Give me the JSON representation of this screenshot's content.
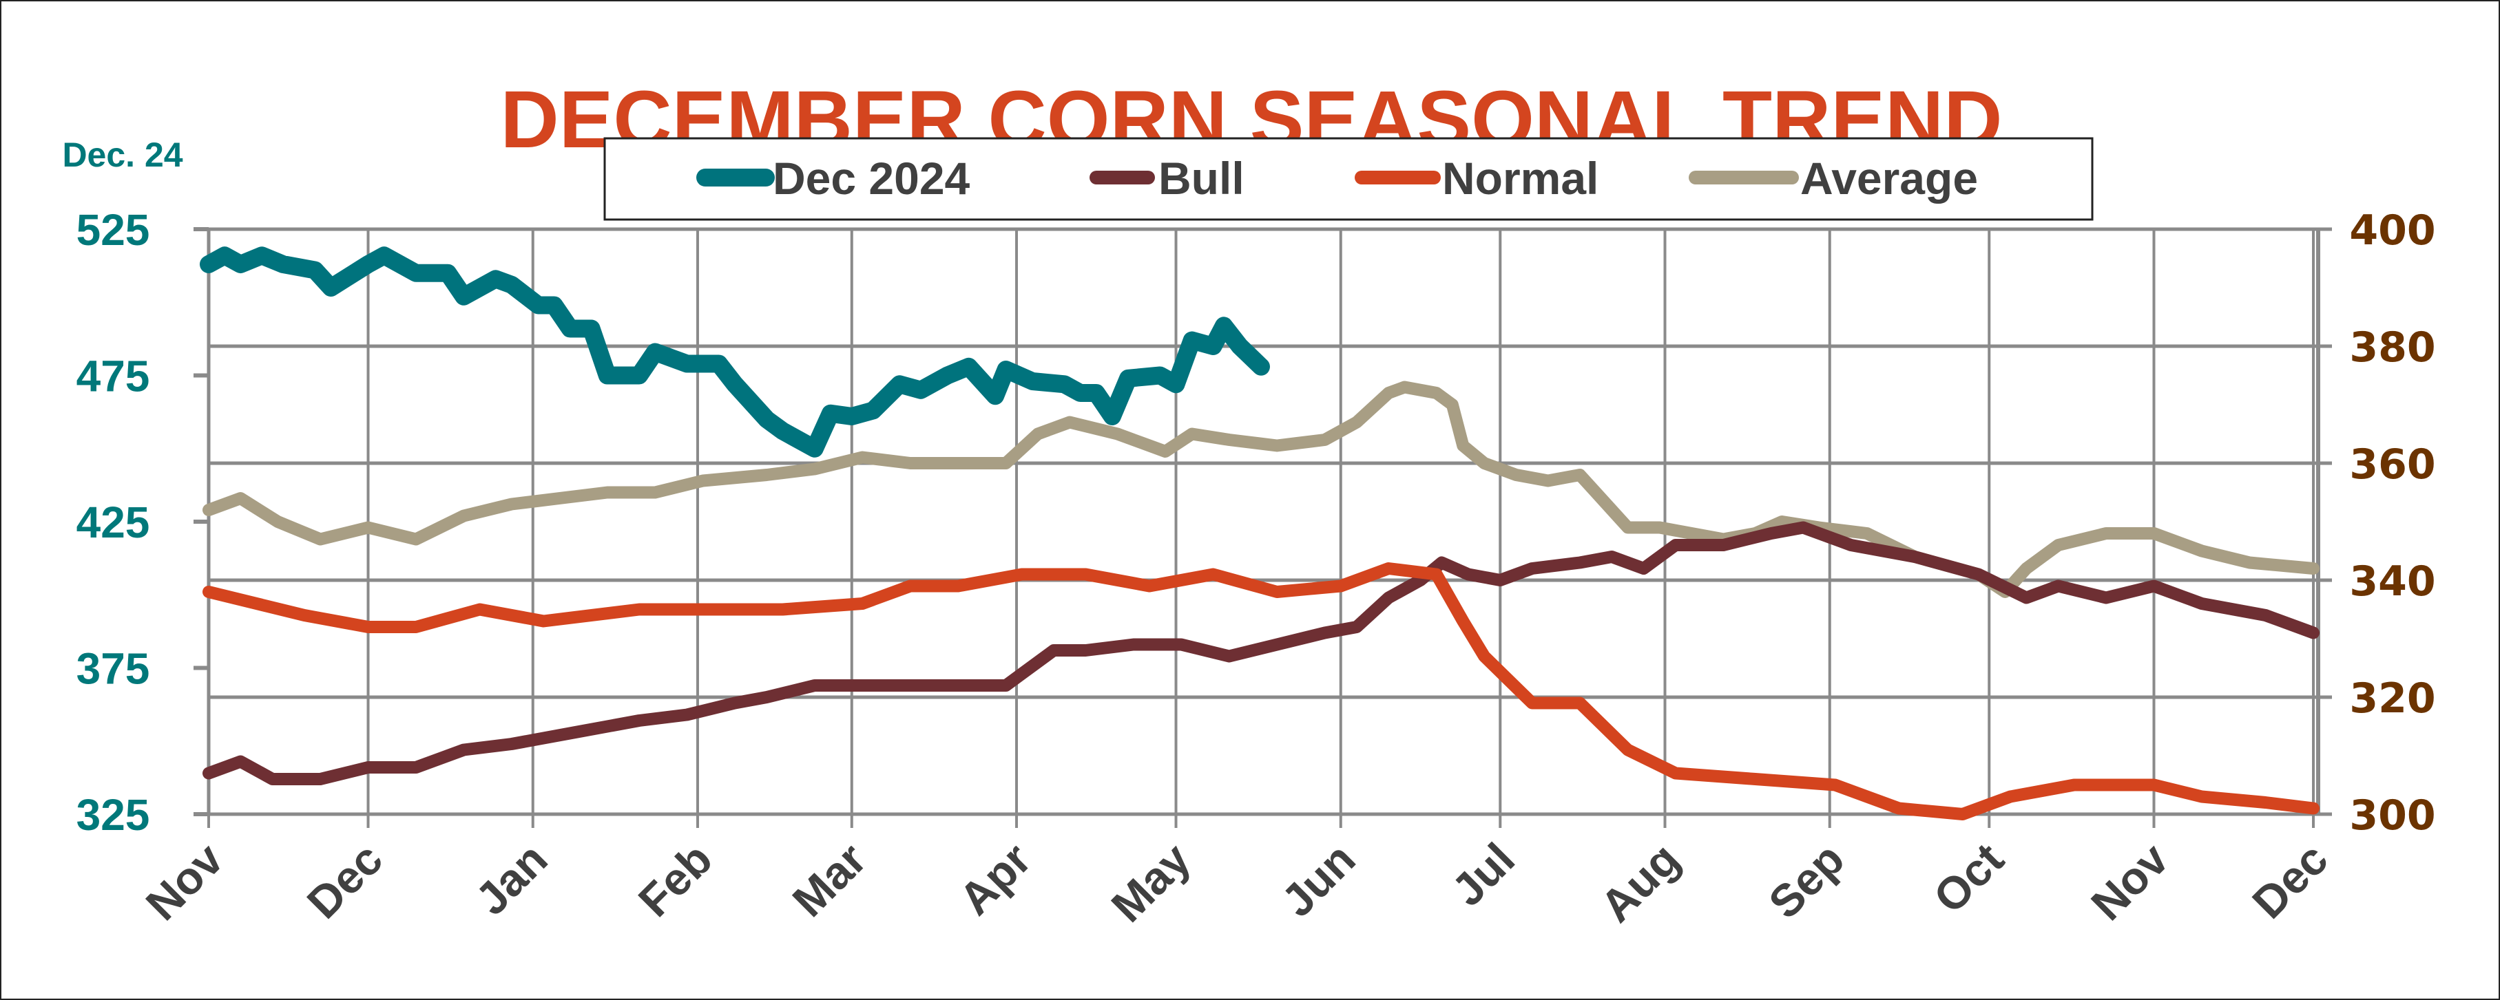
{
  "chart_data": {
    "type": "line",
    "title": "DECEMBER CORN SEASONAL TREND",
    "left_axis": {
      "label": "Dec. 24",
      "ylim": [
        325,
        525
      ],
      "ticks": [
        525,
        475,
        425,
        375,
        325
      ],
      "color": "#00787A"
    },
    "right_axis": {
      "ylim": [
        300,
        400
      ],
      "ticks": [
        400,
        380,
        360,
        340,
        320,
        300
      ],
      "color": "#6B3300"
    },
    "x_ticks": [
      {
        "label": "Nov",
        "date": "2023-11-01"
      },
      {
        "label": "Dec",
        "date": "2023-12-01"
      },
      {
        "label": "Jan",
        "date": "2024-01-01"
      },
      {
        "label": "Feb",
        "date": "2024-02-01"
      },
      {
        "label": "Mar",
        "date": "2024-03-01"
      },
      {
        "label": "Apr",
        "date": "2024-04-01"
      },
      {
        "label": "May",
        "date": "2024-05-01"
      },
      {
        "label": "Jun",
        "date": "2024-06-01"
      },
      {
        "label": "Jul",
        "date": "2024-07-01"
      },
      {
        "label": "Aug",
        "date": "2024-08-01"
      },
      {
        "label": "Sep",
        "date": "2024-09-01"
      },
      {
        "label": "Oct",
        "date": "2024-10-01"
      },
      {
        "label": "Nov",
        "date": "2024-11-01"
      },
      {
        "label": "Dec",
        "date": "2024-12-01"
      }
    ],
    "xlim": [
      "2023-11-01",
      "2024-12-01"
    ],
    "grid": "horizontal at right-axis ticks, vertical at months",
    "legend_position": "top",
    "series": [
      {
        "name": "Dec 2024",
        "axis": "left",
        "color": "#00737D",
        "points": [
          [
            "2023-11-01",
            513
          ],
          [
            "2023-11-04",
            516
          ],
          [
            "2023-11-07",
            513
          ],
          [
            "2023-11-11",
            516
          ],
          [
            "2023-11-15",
            513
          ],
          [
            "2023-11-21",
            511
          ],
          [
            "2023-11-24",
            505
          ],
          [
            "2023-12-01",
            513
          ],
          [
            "2023-12-04",
            516
          ],
          [
            "2023-12-10",
            510
          ],
          [
            "2023-12-16",
            510
          ],
          [
            "2023-12-19",
            502
          ],
          [
            "2023-12-25",
            508
          ],
          [
            "2023-12-28",
            506
          ],
          [
            "2024-01-02",
            499
          ],
          [
            "2024-01-05",
            499
          ],
          [
            "2024-01-08",
            491
          ],
          [
            "2024-01-12",
            491
          ],
          [
            "2024-01-15",
            475
          ],
          [
            "2024-01-21",
            475
          ],
          [
            "2024-01-24",
            483
          ],
          [
            "2024-01-30",
            479
          ],
          [
            "2024-02-05",
            479
          ],
          [
            "2024-02-08",
            472
          ],
          [
            "2024-02-14",
            460
          ],
          [
            "2024-02-17",
            456
          ],
          [
            "2024-02-23",
            450
          ],
          [
            "2024-02-26",
            462
          ],
          [
            "2024-03-01",
            461
          ],
          [
            "2024-03-05",
            463
          ],
          [
            "2024-03-10",
            472
          ],
          [
            "2024-03-14",
            470
          ],
          [
            "2024-03-19",
            475
          ],
          [
            "2024-03-23",
            478
          ],
          [
            "2024-03-28",
            468
          ],
          [
            "2024-03-30",
            477
          ],
          [
            "2024-04-04",
            473
          ],
          [
            "2024-04-10",
            472
          ],
          [
            "2024-04-13",
            469
          ],
          [
            "2024-04-16",
            469
          ],
          [
            "2024-04-19",
            461
          ],
          [
            "2024-04-22",
            474
          ],
          [
            "2024-04-28",
            475
          ],
          [
            "2024-05-01",
            472
          ],
          [
            "2024-05-04",
            487
          ],
          [
            "2024-05-08",
            485
          ],
          [
            "2024-05-10",
            492
          ],
          [
            "2024-05-13",
            485
          ],
          [
            "2024-05-17",
            478
          ]
        ]
      },
      {
        "name": "Bull",
        "axis": "right",
        "color": "#6E2F33",
        "points": [
          [
            "2023-11-01",
            307
          ],
          [
            "2023-11-07",
            309
          ],
          [
            "2023-11-13",
            306
          ],
          [
            "2023-11-22",
            306
          ],
          [
            "2023-12-01",
            308
          ],
          [
            "2023-12-10",
            308
          ],
          [
            "2023-12-19",
            311
          ],
          [
            "2023-12-28",
            312
          ],
          [
            "2024-01-09",
            314
          ],
          [
            "2024-01-21",
            316
          ],
          [
            "2024-01-30",
            317
          ],
          [
            "2024-02-08",
            319
          ],
          [
            "2024-02-14",
            320
          ],
          [
            "2024-02-23",
            322
          ],
          [
            "2024-03-03",
            322
          ],
          [
            "2024-03-12",
            322
          ],
          [
            "2024-03-21",
            322
          ],
          [
            "2024-03-30",
            322
          ],
          [
            "2024-04-02",
            324
          ],
          [
            "2024-04-08",
            328
          ],
          [
            "2024-04-14",
            328
          ],
          [
            "2024-04-23",
            329
          ],
          [
            "2024-05-02",
            329
          ],
          [
            "2024-05-11",
            327
          ],
          [
            "2024-05-20",
            329
          ],
          [
            "2024-05-29",
            331
          ],
          [
            "2024-06-04",
            332
          ],
          [
            "2024-06-10",
            337
          ],
          [
            "2024-06-16",
            340
          ],
          [
            "2024-06-20",
            343
          ],
          [
            "2024-06-25",
            341
          ],
          [
            "2024-07-01",
            340
          ],
          [
            "2024-07-07",
            342
          ],
          [
            "2024-07-16",
            343
          ],
          [
            "2024-07-22",
            344
          ],
          [
            "2024-07-28",
            342
          ],
          [
            "2024-08-03",
            346
          ],
          [
            "2024-08-12",
            346
          ],
          [
            "2024-08-21",
            348
          ],
          [
            "2024-08-27",
            349
          ],
          [
            "2024-09-05",
            346
          ],
          [
            "2024-09-17",
            344
          ],
          [
            "2024-09-29",
            341
          ],
          [
            "2024-10-08",
            337
          ],
          [
            "2024-10-14",
            339
          ],
          [
            "2024-10-23",
            337
          ],
          [
            "2024-11-01",
            339
          ],
          [
            "2024-11-10",
            336
          ],
          [
            "2024-11-22",
            334
          ],
          [
            "2024-12-01",
            331
          ]
        ]
      },
      {
        "name": "Normal",
        "axis": "right",
        "color": "#D4441E",
        "points": [
          [
            "2023-11-01",
            338
          ],
          [
            "2023-11-10",
            336
          ],
          [
            "2023-11-19",
            334
          ],
          [
            "2023-12-01",
            332
          ],
          [
            "2023-12-10",
            332
          ],
          [
            "2023-12-22",
            335
          ],
          [
            "2024-01-03",
            333
          ],
          [
            "2024-01-21",
            335
          ],
          [
            "2024-02-02",
            335
          ],
          [
            "2024-02-17",
            335
          ],
          [
            "2024-03-03",
            336
          ],
          [
            "2024-03-12",
            339
          ],
          [
            "2024-03-21",
            339
          ],
          [
            "2024-04-02",
            341
          ],
          [
            "2024-04-14",
            341
          ],
          [
            "2024-04-26",
            339
          ],
          [
            "2024-05-08",
            341
          ],
          [
            "2024-05-20",
            338
          ],
          [
            "2024-06-01",
            339
          ],
          [
            "2024-06-10",
            342
          ],
          [
            "2024-06-19",
            341
          ],
          [
            "2024-06-24",
            333
          ],
          [
            "2024-06-28",
            327
          ],
          [
            "2024-07-07",
            319
          ],
          [
            "2024-07-16",
            319
          ],
          [
            "2024-07-25",
            311
          ],
          [
            "2024-08-03",
            307
          ],
          [
            "2024-08-18",
            306
          ],
          [
            "2024-09-02",
            305
          ],
          [
            "2024-09-14",
            301
          ],
          [
            "2024-09-26",
            300
          ],
          [
            "2024-10-05",
            303
          ],
          [
            "2024-10-17",
            305
          ],
          [
            "2024-11-01",
            305
          ],
          [
            "2024-11-10",
            303
          ],
          [
            "2024-11-22",
            302
          ],
          [
            "2024-12-01",
            301
          ]
        ]
      },
      {
        "name": "Average",
        "axis": "right",
        "color": "#A89E84",
        "points": [
          [
            "2023-11-01",
            352
          ],
          [
            "2023-11-07",
            354
          ],
          [
            "2023-11-14",
            350
          ],
          [
            "2023-11-22",
            347
          ],
          [
            "2023-12-01",
            349
          ],
          [
            "2023-12-10",
            347
          ],
          [
            "2023-12-19",
            351
          ],
          [
            "2023-12-28",
            353
          ],
          [
            "2024-01-06",
            354
          ],
          [
            "2024-01-15",
            355
          ],
          [
            "2024-01-24",
            355
          ],
          [
            "2024-02-02",
            357
          ],
          [
            "2024-02-14",
            358
          ],
          [
            "2024-02-23",
            359
          ],
          [
            "2024-03-03",
            361
          ],
          [
            "2024-03-12",
            360
          ],
          [
            "2024-03-21",
            360
          ],
          [
            "2024-03-30",
            360
          ],
          [
            "2024-04-05",
            365
          ],
          [
            "2024-04-11",
            367
          ],
          [
            "2024-04-20",
            365
          ],
          [
            "2024-04-29",
            362
          ],
          [
            "2024-05-04",
            365
          ],
          [
            "2024-05-11",
            364
          ],
          [
            "2024-05-20",
            363
          ],
          [
            "2024-05-29",
            364
          ],
          [
            "2024-06-04",
            367
          ],
          [
            "2024-06-10",
            372
          ],
          [
            "2024-06-13",
            373
          ],
          [
            "2024-06-19",
            372
          ],
          [
            "2024-06-22",
            370
          ],
          [
            "2024-06-24",
            363
          ],
          [
            "2024-06-28",
            360
          ],
          [
            "2024-07-04",
            358
          ],
          [
            "2024-07-10",
            357
          ],
          [
            "2024-07-16",
            358
          ],
          [
            "2024-07-19",
            355
          ],
          [
            "2024-07-25",
            349
          ],
          [
            "2024-07-31",
            349
          ],
          [
            "2024-08-06",
            348
          ],
          [
            "2024-08-12",
            347
          ],
          [
            "2024-08-18",
            348
          ],
          [
            "2024-08-23",
            350
          ],
          [
            "2024-08-30",
            349
          ],
          [
            "2024-09-08",
            348
          ],
          [
            "2024-09-17",
            344
          ],
          [
            "2024-09-29",
            341
          ],
          [
            "2024-10-04",
            338
          ],
          [
            "2024-10-08",
            342
          ],
          [
            "2024-10-14",
            346
          ],
          [
            "2024-10-23",
            348
          ],
          [
            "2024-11-01",
            348
          ],
          [
            "2024-11-10",
            345
          ],
          [
            "2024-11-19",
            343
          ],
          [
            "2024-12-01",
            342
          ]
        ]
      }
    ]
  }
}
